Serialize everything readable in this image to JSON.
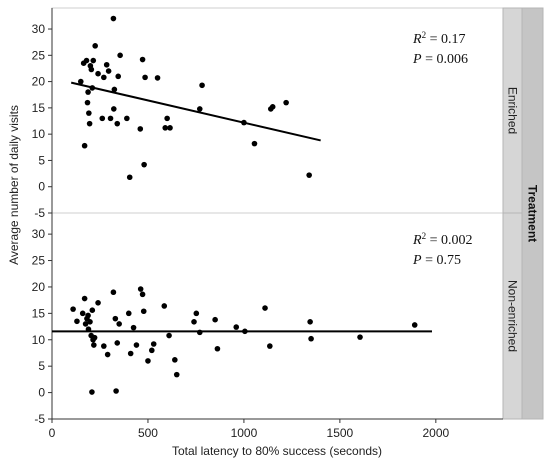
{
  "chart_data": {
    "type": "scatter",
    "xlabel": "Total latency to 80% success (seconds)",
    "ylabel": "Average number of daily visits",
    "facet_label": "Treatment",
    "xlim": [
      0,
      2350
    ],
    "x_ticks": [
      0,
      500,
      1000,
      1500,
      2000
    ],
    "ylim": [
      -5,
      34
    ],
    "y_ticks": [
      -5,
      0,
      5,
      10,
      15,
      20,
      25,
      30
    ],
    "panels": [
      {
        "strip": "Enriched",
        "r2_text": " = 0.17",
        "p_text": " = 0.006",
        "trend": {
          "x0": 100,
          "y0": 19.8,
          "x1": 1400,
          "y1": 8.8
        },
        "points": [
          {
            "x": 150,
            "y": 20.0
          },
          {
            "x": 165,
            "y": 23.5
          },
          {
            "x": 170,
            "y": 7.8
          },
          {
            "x": 180,
            "y": 24.0
          },
          {
            "x": 185,
            "y": 16.0
          },
          {
            "x": 188,
            "y": 18.0
          },
          {
            "x": 192,
            "y": 14.0
          },
          {
            "x": 196,
            "y": 12.0
          },
          {
            "x": 200,
            "y": 23.0
          },
          {
            "x": 205,
            "y": 22.3
          },
          {
            "x": 210,
            "y": 18.8
          },
          {
            "x": 215,
            "y": 24.0
          },
          {
            "x": 225,
            "y": 26.8
          },
          {
            "x": 240,
            "y": 21.5
          },
          {
            "x": 262,
            "y": 13.0
          },
          {
            "x": 270,
            "y": 20.8
          },
          {
            "x": 285,
            "y": 23.2
          },
          {
            "x": 295,
            "y": 22.0
          },
          {
            "x": 305,
            "y": 13.0
          },
          {
            "x": 320,
            "y": 32.0
          },
          {
            "x": 322,
            "y": 14.8
          },
          {
            "x": 325,
            "y": 18.5
          },
          {
            "x": 340,
            "y": 12.0
          },
          {
            "x": 345,
            "y": 21.0
          },
          {
            "x": 355,
            "y": 25.0
          },
          {
            "x": 390,
            "y": 13.0
          },
          {
            "x": 405,
            "y": 1.8
          },
          {
            "x": 460,
            "y": 11.0
          },
          {
            "x": 472,
            "y": 24.2
          },
          {
            "x": 480,
            "y": 4.2
          },
          {
            "x": 485,
            "y": 20.8
          },
          {
            "x": 550,
            "y": 20.7
          },
          {
            "x": 590,
            "y": 11.2
          },
          {
            "x": 600,
            "y": 13.0
          },
          {
            "x": 615,
            "y": 11.2
          },
          {
            "x": 770,
            "y": 14.8
          },
          {
            "x": 782,
            "y": 19.3
          },
          {
            "x": 1000,
            "y": 12.2
          },
          {
            "x": 1055,
            "y": 8.2
          },
          {
            "x": 1140,
            "y": 14.8
          },
          {
            "x": 1150,
            "y": 15.2
          },
          {
            "x": 1220,
            "y": 16.0
          },
          {
            "x": 1340,
            "y": 2.2
          }
        ]
      },
      {
        "strip": "Non-enriched",
        "r2_text": " = 0.002",
        "p_text": " = 0.75",
        "trend": {
          "x0": 0,
          "y0": 11.6,
          "x1": 1980,
          "y1": 11.6
        },
        "points": [
          {
            "x": 110,
            "y": 15.8
          },
          {
            "x": 130,
            "y": 13.5
          },
          {
            "x": 160,
            "y": 15.0
          },
          {
            "x": 170,
            "y": 17.8
          },
          {
            "x": 175,
            "y": 13.0
          },
          {
            "x": 182,
            "y": 14.0
          },
          {
            "x": 188,
            "y": 14.6
          },
          {
            "x": 190,
            "y": 12.0
          },
          {
            "x": 198,
            "y": 13.4
          },
          {
            "x": 204,
            "y": 10.8
          },
          {
            "x": 208,
            "y": 0.1
          },
          {
            "x": 210,
            "y": 15.6
          },
          {
            "x": 214,
            "y": 10.0
          },
          {
            "x": 218,
            "y": 9.0
          },
          {
            "x": 222,
            "y": 10.4
          },
          {
            "x": 240,
            "y": 17.0
          },
          {
            "x": 270,
            "y": 8.8
          },
          {
            "x": 290,
            "y": 7.2
          },
          {
            "x": 320,
            "y": 19.0
          },
          {
            "x": 330,
            "y": 14.0
          },
          {
            "x": 334,
            "y": 0.3
          },
          {
            "x": 340,
            "y": 9.4
          },
          {
            "x": 350,
            "y": 13.0
          },
          {
            "x": 400,
            "y": 15.0
          },
          {
            "x": 410,
            "y": 7.4
          },
          {
            "x": 425,
            "y": 12.3
          },
          {
            "x": 440,
            "y": 9.0
          },
          {
            "x": 462,
            "y": 19.6
          },
          {
            "x": 472,
            "y": 18.6
          },
          {
            "x": 478,
            "y": 15.4
          },
          {
            "x": 500,
            "y": 6.0
          },
          {
            "x": 520,
            "y": 8.0
          },
          {
            "x": 530,
            "y": 9.2
          },
          {
            "x": 585,
            "y": 16.4
          },
          {
            "x": 610,
            "y": 10.8
          },
          {
            "x": 640,
            "y": 6.2
          },
          {
            "x": 650,
            "y": 3.4
          },
          {
            "x": 740,
            "y": 13.4
          },
          {
            "x": 752,
            "y": 15.0
          },
          {
            "x": 770,
            "y": 11.4
          },
          {
            "x": 850,
            "y": 13.8
          },
          {
            "x": 862,
            "y": 8.3
          },
          {
            "x": 960,
            "y": 12.4
          },
          {
            "x": 1005,
            "y": 11.6
          },
          {
            "x": 1110,
            "y": 16.0
          },
          {
            "x": 1135,
            "y": 8.8
          },
          {
            "x": 1345,
            "y": 13.4
          },
          {
            "x": 1350,
            "y": 10.2
          },
          {
            "x": 1605,
            "y": 10.5
          },
          {
            "x": 1890,
            "y": 12.8
          }
        ]
      }
    ]
  }
}
